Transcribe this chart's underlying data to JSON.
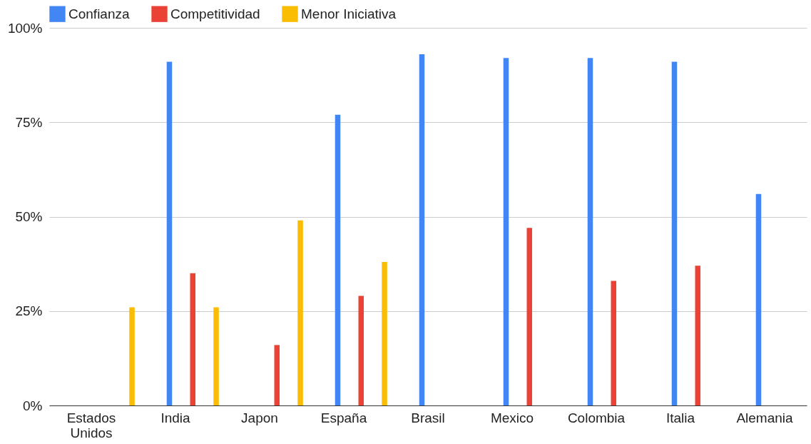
{
  "chart_data": {
    "type": "bar",
    "categories": [
      "Estados Unidos",
      "India",
      "Japon",
      "España",
      "Brasil",
      "Mexico",
      "Colombia",
      "Italia",
      "Alemania"
    ],
    "series": [
      {
        "name": "Confianza",
        "color": "#4285f4",
        "values": [
          null,
          91,
          null,
          77,
          93,
          92,
          92,
          91,
          56
        ]
      },
      {
        "name": "Competitividad",
        "color": "#ea4335",
        "values": [
          null,
          35,
          16,
          29,
          null,
          47,
          33,
          37,
          null
        ]
      },
      {
        "name": "Menor Iniciativa",
        "color": "#fbbc04",
        "values": [
          26,
          26,
          49,
          38,
          null,
          null,
          null,
          null,
          null
        ]
      }
    ],
    "ylim": [
      0,
      100
    ],
    "yticks": [
      {
        "value": 0,
        "label": "0%"
      },
      {
        "value": 25,
        "label": "25%"
      },
      {
        "value": 50,
        "label": "50%"
      },
      {
        "value": 75,
        "label": "75%"
      },
      {
        "value": 100,
        "label": "100%"
      }
    ],
    "grid": "y",
    "legend": "top"
  }
}
